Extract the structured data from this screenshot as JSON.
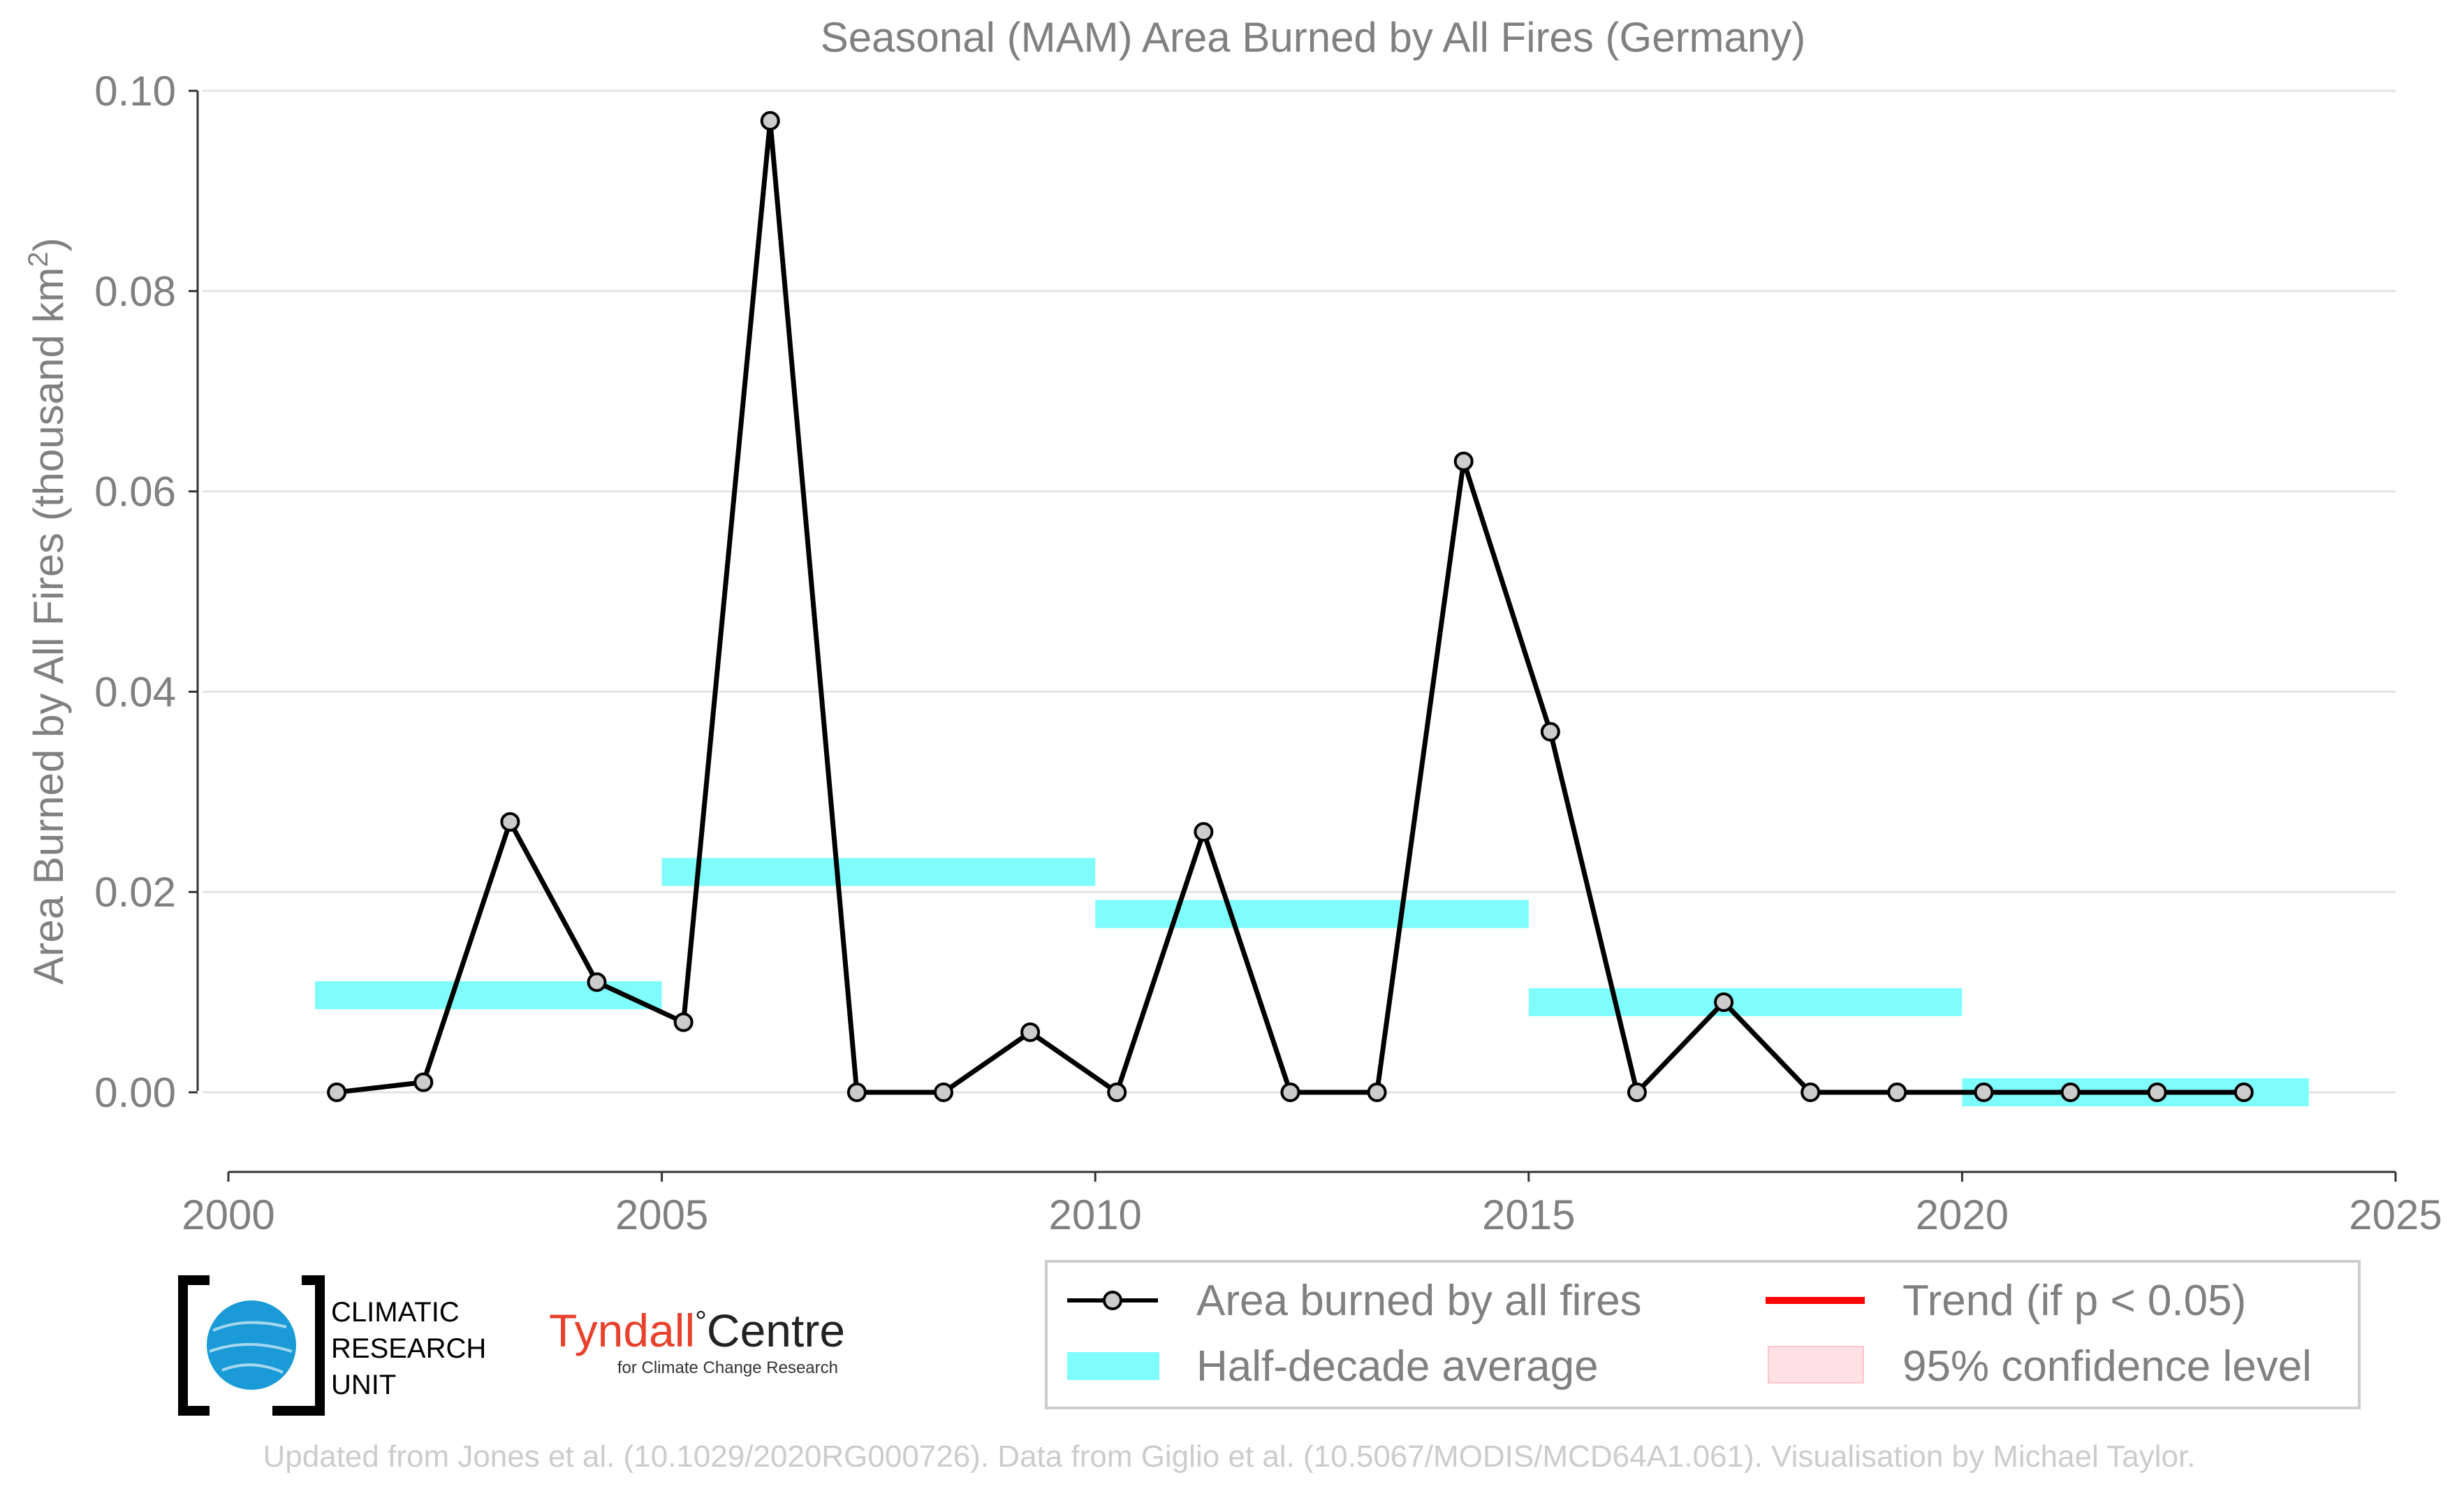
{
  "chart_data": {
    "type": "line",
    "title": "Seasonal (MAM) Area Burned by All Fires (Germany)",
    "ylabel": "Area Burned by All Fires (thousand km",
    "ylabel_sup": "2",
    "ylabel_end": ")",
    "xlabel": "",
    "xlim": [
      2000,
      2025
    ],
    "ylim": [
      -0.0077,
      0.1
    ],
    "x_ticks": [
      2000,
      2005,
      2010,
      2015,
      2020,
      2025
    ],
    "x_tick_labels": [
      "2000",
      "2005",
      "2010",
      "2015",
      "2020",
      "2025"
    ],
    "y_ticks": [
      0,
      0.02,
      0.04,
      0.06,
      0.08,
      0.1
    ],
    "y_tick_labels": [
      "0.00",
      "0.02",
      "0.04",
      "0.06",
      "0.08",
      "0.10"
    ],
    "grid": "horizontal",
    "series": [
      {
        "name": "Area burned by all fires",
        "color": "#000000",
        "marker_fill": "#cccccc",
        "x": [
          2001.25,
          2002.25,
          2003.25,
          2004.25,
          2005.25,
          2006.25,
          2007.25,
          2008.25,
          2009.25,
          2010.25,
          2011.25,
          2012.25,
          2013.25,
          2014.25,
          2015.25,
          2016.25,
          2017.25,
          2018.25,
          2019.25,
          2020.25,
          2021.25,
          2022.25,
          2023.25
        ],
        "values": [
          0.0,
          0.001,
          0.027,
          0.011,
          0.007,
          0.097,
          0.0,
          0.0,
          0.006,
          0.0,
          0.026,
          0.0,
          0.0,
          0.063,
          0.036,
          0.0,
          0.009,
          0.0,
          0.0,
          0.0,
          0.0,
          0.0,
          0.0
        ]
      }
    ],
    "half_decade_averages": {
      "name": "Half-decade average",
      "color": "#7ffdfd",
      "segments": [
        {
          "start": 2001,
          "end": 2005,
          "value": 0.0097
        },
        {
          "start": 2005,
          "end": 2010,
          "value": 0.022
        },
        {
          "start": 2010,
          "end": 2015,
          "value": 0.0178
        },
        {
          "start": 2015,
          "end": 2020,
          "value": 0.009
        },
        {
          "start": 2020,
          "end": 2024,
          "value": 0.0
        }
      ]
    },
    "legend": {
      "placement": "bottom-right",
      "entries": [
        {
          "label": "Area burned by all fires",
          "kind": "line-marker",
          "color": "#000000"
        },
        {
          "label": "Trend (if p < 0.05)",
          "kind": "line",
          "color": "#ff0000"
        },
        {
          "label": "Half-decade average",
          "kind": "band",
          "color": "#7ffdfd"
        },
        {
          "label": "95% confidence level",
          "kind": "patch",
          "color": "#ffe0e3"
        }
      ]
    }
  },
  "logos": {
    "cru_line1": "CLIMATIC",
    "cru_line2": "RESEARCH",
    "cru_line3": "UNIT",
    "tyndall_name": "Tyndall",
    "tyndall_degree": "°",
    "tyndall_centre": "Centre",
    "tyndall_sub": "for Climate Change Research",
    "tyndall_color": "#e8412c"
  },
  "footer": "Updated from Jones et al. (10.1029/2020RG000726). Data from Giglio et al. (10.5067/MODIS/MCD64A1.061). Visualisation by Michael Taylor."
}
